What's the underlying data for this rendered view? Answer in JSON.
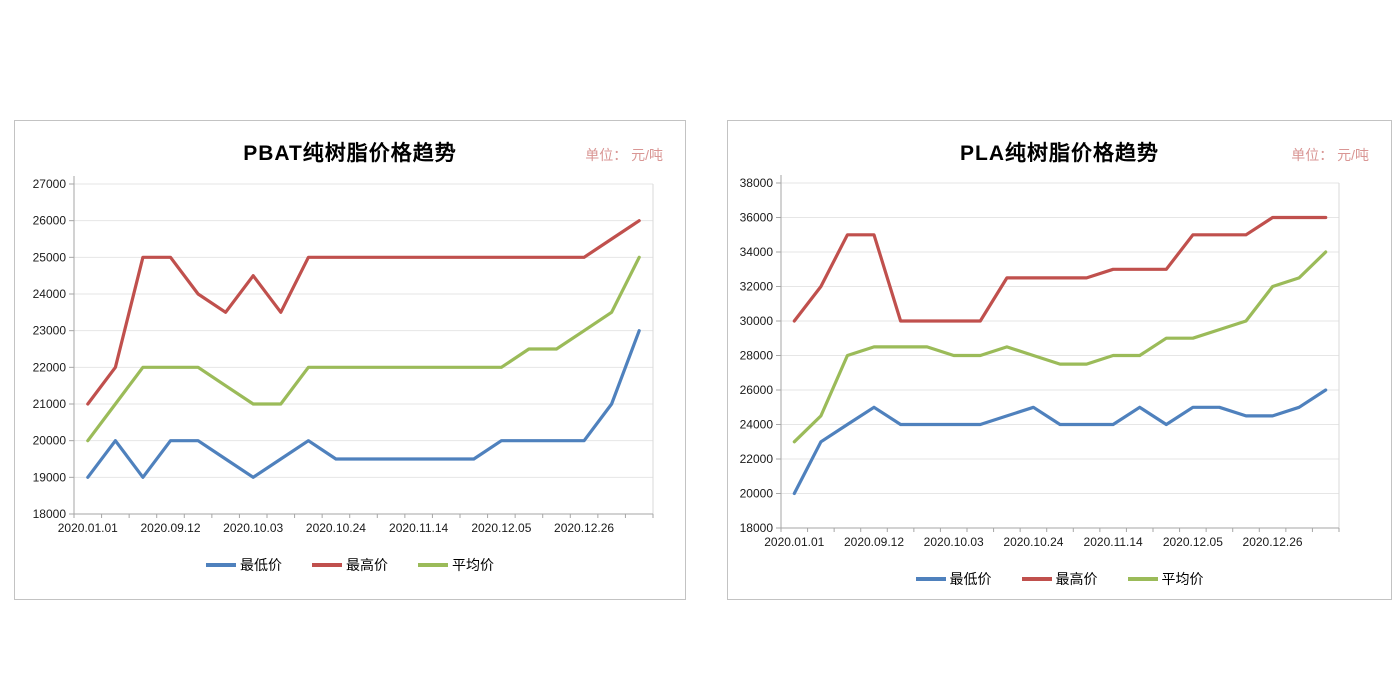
{
  "chart_data": [
    {
      "type": "line",
      "title": "PBAT纯树脂价格趋势",
      "unit_label": "单位： 元/吨",
      "ylim": [
        18000,
        27000
      ],
      "ytick_step": 1000,
      "grid": true,
      "legend_position": "bottom",
      "x_labels": [
        "2020.01.01",
        "2020.09.12",
        "2020.10.03",
        "2020.10.24",
        "2020.11.14",
        "2020.12.05",
        "2020.12.26"
      ],
      "label_interval": 3,
      "series": [
        {
          "name": "最低价",
          "color": "#4F81BD",
          "values": [
            19000,
            20000,
            19000,
            20000,
            20000,
            19500,
            19000,
            19500,
            20000,
            19500,
            19500,
            19500,
            19500,
            19500,
            19500,
            20000,
            20000,
            20000,
            20000,
            21000,
            23000
          ]
        },
        {
          "name": "最高价",
          "color": "#C0504D",
          "values": [
            21000,
            22000,
            25000,
            25000,
            24000,
            23500,
            24500,
            23500,
            25000,
            25000,
            25000,
            25000,
            25000,
            25000,
            25000,
            25000,
            25000,
            25000,
            25000,
            25500,
            26000
          ]
        },
        {
          "name": "平均价",
          "color": "#9BBB59",
          "values": [
            20000,
            21000,
            22000,
            22000,
            22000,
            21500,
            21000,
            21000,
            22000,
            22000,
            22000,
            22000,
            22000,
            22000,
            22000,
            22000,
            22500,
            22500,
            23000,
            23500,
            25000
          ]
        }
      ]
    },
    {
      "type": "line",
      "title": "PLA纯树脂价格趋势",
      "unit_label": "单位： 元/吨",
      "ylim": [
        18000,
        38000
      ],
      "ytick_step": 2000,
      "grid": true,
      "legend_position": "bottom",
      "x_labels": [
        "2020.01.01",
        "2020.09.12",
        "2020.10.03",
        "2020.10.24",
        "2020.11.14",
        "2020.12.05",
        "2020.12.26"
      ],
      "label_interval": 3,
      "series": [
        {
          "name": "最低价",
          "color": "#4F81BD",
          "values": [
            20000,
            23000,
            24000,
            25000,
            24000,
            24000,
            24000,
            24000,
            24500,
            25000,
            24000,
            24000,
            24000,
            25000,
            24000,
            25000,
            25000,
            24500,
            24500,
            25000,
            26000
          ]
        },
        {
          "name": "最高价",
          "color": "#C0504D",
          "values": [
            30000,
            32000,
            35000,
            35000,
            30000,
            30000,
            30000,
            30000,
            32500,
            32500,
            32500,
            32500,
            33000,
            33000,
            33000,
            35000,
            35000,
            35000,
            36000,
            36000,
            36000
          ]
        },
        {
          "name": "平均价",
          "color": "#9BBB59",
          "values": [
            23000,
            24500,
            28000,
            28500,
            28500,
            28500,
            28000,
            28000,
            28500,
            28000,
            27500,
            27500,
            28000,
            28000,
            29000,
            29000,
            29500,
            30000,
            32000,
            32500,
            34000
          ]
        }
      ]
    }
  ]
}
